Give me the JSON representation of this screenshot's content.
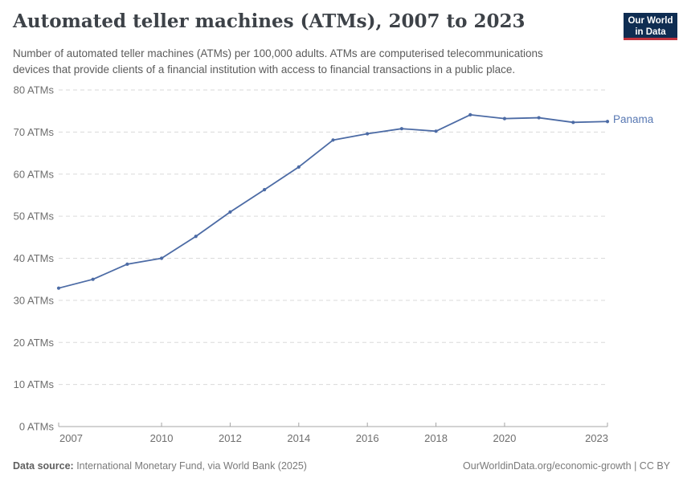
{
  "header": {
    "title": "Automated teller machines (ATMs), 2007 to 2023",
    "subtitle_line1": "Number of automated teller machines (ATMs) per 100,000 adults. ATMs are computerised telecommunications",
    "subtitle_line2": "devices that provide clients of a financial institution with access to financial transactions in a public place.",
    "logo": {
      "line1": "Our World",
      "line2": "in Data",
      "bg_color": "#0f2d52",
      "bar_color": "#c0333e"
    }
  },
  "chart_data": {
    "type": "line",
    "title": "Automated teller machines (ATMs), 2007 to 2023",
    "x": [
      2007,
      2008,
      2009,
      2010,
      2011,
      2012,
      2013,
      2014,
      2015,
      2016,
      2017,
      2018,
      2019,
      2020,
      2021,
      2022,
      2023
    ],
    "series": [
      {
        "name": "Panama",
        "color": "#4c6ba5",
        "label_color": "#5878b3",
        "values": [
          32.9,
          35.0,
          38.6,
          40.0,
          45.2,
          51.0,
          56.3,
          61.7,
          68.1,
          69.6,
          70.8,
          70.2,
          74.1,
          73.2,
          73.4,
          72.3,
          72.5
        ]
      }
    ],
    "xlabel": "",
    "ylabel": "",
    "x_range": [
      2007,
      2023
    ],
    "ylim": [
      0,
      80
    ],
    "yticks": [
      0,
      10,
      20,
      30,
      40,
      50,
      60,
      70,
      80
    ],
    "ytick_labels": [
      "0 ATMs",
      "10 ATMs",
      "20 ATMs",
      "30 ATMs",
      "40 ATMs",
      "50 ATMs",
      "60 ATMs",
      "70 ATMs",
      "80 ATMs"
    ],
    "xticks": [
      2007,
      2010,
      2012,
      2014,
      2016,
      2018,
      2020,
      2023
    ],
    "xtick_labels": [
      "2007",
      "2010",
      "2012",
      "2014",
      "2016",
      "2018",
      "2020",
      "2023"
    ],
    "grid": "horizontal dashed",
    "legend": "end-of-line label"
  },
  "footer": {
    "data_source_label": "Data source:",
    "data_source_text": " International Monetary Fund, via World Bank (2025)",
    "url": "OurWorldinData.org/economic-growth",
    "separator": " | ",
    "license": "CC BY"
  }
}
